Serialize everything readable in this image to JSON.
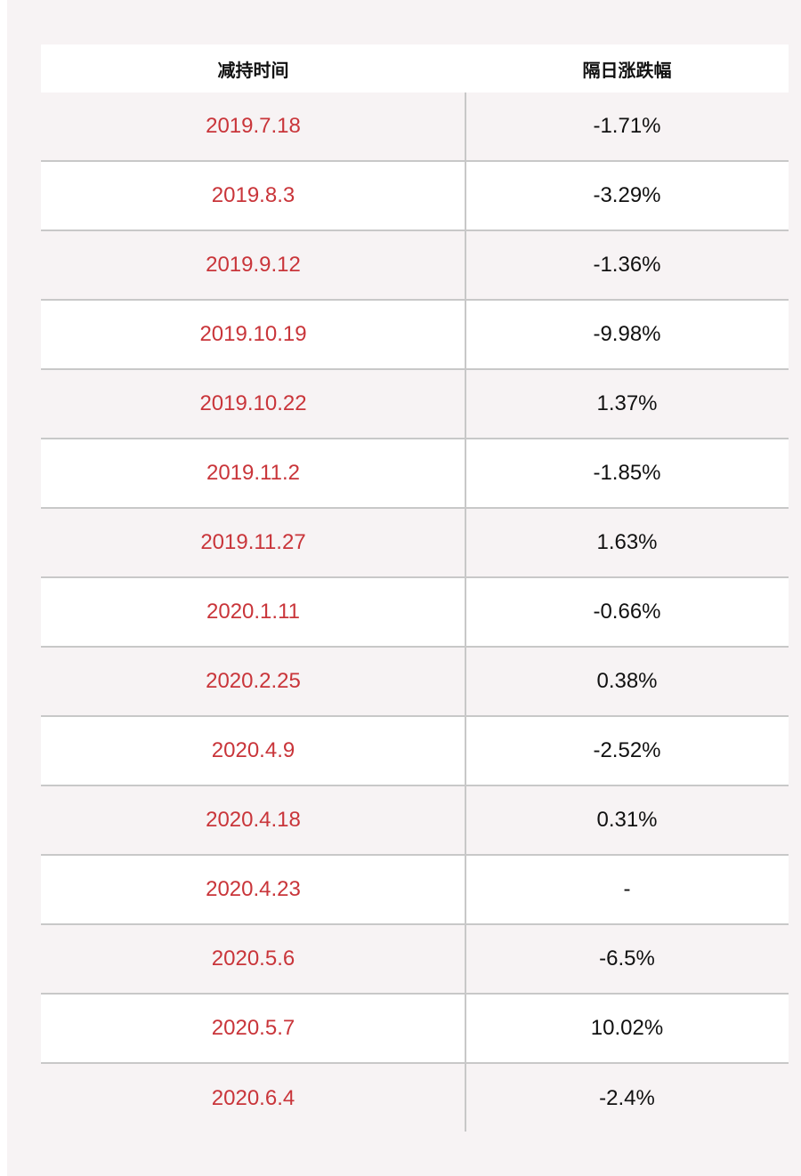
{
  "table": {
    "headers": [
      "减持时间",
      "隔日涨跌幅"
    ],
    "rows": [
      {
        "date": "2019.7.18",
        "change": "-1.71%"
      },
      {
        "date": "2019.8.3",
        "change": "-3.29%"
      },
      {
        "date": "2019.9.12",
        "change": "-1.36%"
      },
      {
        "date": "2019.10.19",
        "change": "-9.98%"
      },
      {
        "date": "2019.10.22",
        "change": "1.37%"
      },
      {
        "date": "2019.11.2",
        "change": "-1.85%"
      },
      {
        "date": "2019.11.27",
        "change": "1.63%"
      },
      {
        "date": "2020.1.11",
        "change": "-0.66%"
      },
      {
        "date": "2020.2.25",
        "change": "0.38%"
      },
      {
        "date": "2020.4.9",
        "change": "-2.52%"
      },
      {
        "date": "2020.4.18",
        "change": "0.31%"
      },
      {
        "date": "2020.4.23",
        "change": "-"
      },
      {
        "date": "2020.5.6",
        "change": "-6.5%"
      },
      {
        "date": "2020.5.7",
        "change": "10.02%"
      },
      {
        "date": "2020.6.4",
        "change": "-2.4%"
      }
    ]
  },
  "colors": {
    "date_text": "#c9353a",
    "value_text": "#111111",
    "panel_bg": "#f7f3f4",
    "divider": "#c8c8c8"
  }
}
